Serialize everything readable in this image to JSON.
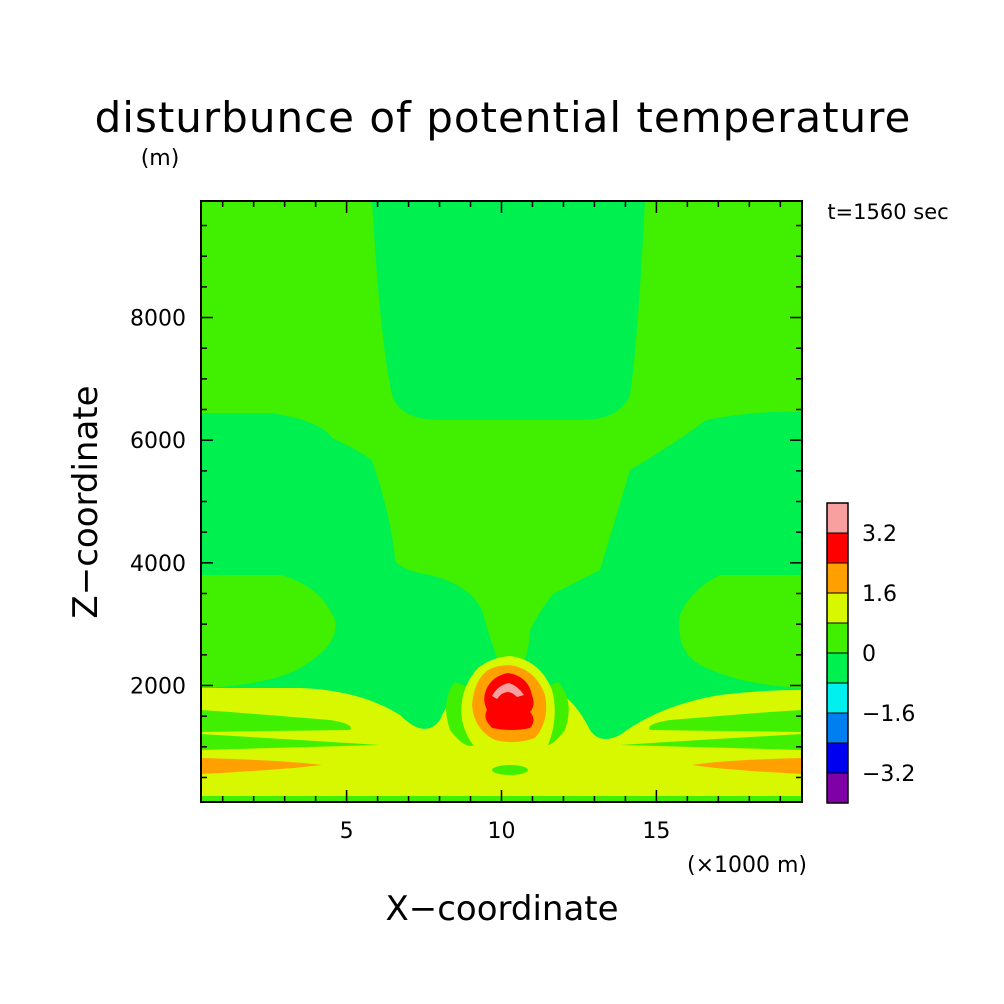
{
  "chart_data": {
    "type": "contour",
    "title": "disturbunce of potential temperature",
    "y_unit": "(m)",
    "time_label": "t=1560 sec",
    "xlabel": "X−coordinate",
    "ylabel": "Z−coordinate",
    "x_unit": "(×1000 m)",
    "xlim": [
      0.3,
      19.7
    ],
    "ylim": [
      100,
      9900
    ],
    "x_ticks": [
      5,
      10,
      15
    ],
    "x_tick_labels": [
      "5",
      "10",
      "15"
    ],
    "y_ticks": [
      2000,
      4000,
      6000,
      8000
    ],
    "y_tick_labels": [
      "2000",
      "4000",
      "6000",
      "8000"
    ],
    "colorbar": {
      "levels": [
        {
          "color": "#8000a8"
        },
        {
          "color": "#0000f0"
        },
        {
          "color": "#0080f0"
        },
        {
          "color": "#00f0f0"
        },
        {
          "color": "#00f050"
        },
        {
          "color": "#40f000"
        },
        {
          "color": "#d8f800"
        },
        {
          "color": "#ffa000"
        },
        {
          "color": "#ff0000"
        },
        {
          "color": "#f8a0a0"
        }
      ],
      "tick_labels": [
        "−3.2",
        "−1.6",
        "0",
        "1.6",
        "3.2"
      ],
      "tick_values": [
        -3.2,
        -1.6,
        0,
        1.6,
        3.2
      ]
    }
  }
}
